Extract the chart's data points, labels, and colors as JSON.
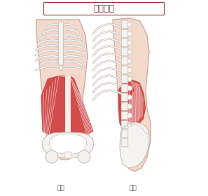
{
  "title": "内腹斜筋",
  "label_front": "前面",
  "label_side": "側面",
  "title_color": "#8B3A3A",
  "title_box_color": "#8B3A3A",
  "title_fontsize": 9,
  "label_fontsize": 6.5,
  "bg_color": "#ffffff",
  "skin_color": "#F2D9CC",
  "skin_edge_color": "#D4A898",
  "bone_color": "#F5F3F0",
  "bone_edge_color": "#C8C0B8",
  "muscle_red": "#CC3333",
  "muscle_pink": "#E8A0A0",
  "muscle_alpha": 0.85
}
